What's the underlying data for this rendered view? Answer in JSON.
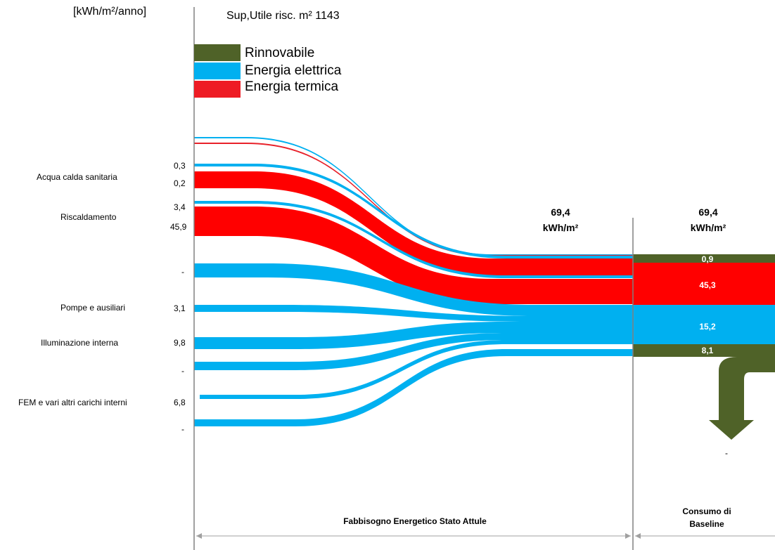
{
  "header": {
    "unit": "[kWh/m²/anno]",
    "surface": "Sup,Utile risc. m² 1143"
  },
  "legend": [
    {
      "label": "Rinnovabile",
      "color": "#4f6228"
    },
    {
      "label": "Energia elettrica",
      "color": "#00b0f0"
    },
    {
      "label": "Energia termica",
      "color": "#ff0000"
    }
  ],
  "categories": [
    "Acqua calda sanitaria",
    "Riscaldamento",
    "Pompe e ausiliari",
    "Illuminazione interna",
    "FEM e vari altri carichi interni"
  ],
  "left_values": [
    "0,3",
    "0,2",
    "3,4",
    "45,9",
    "-",
    "3,1",
    "9,8",
    "-",
    "6,8",
    "-"
  ],
  "totals": {
    "fabbisogno": "69,4",
    "fabbisogno_unit": "kWh/m²",
    "consumo": "69,4",
    "consumo_unit": "kWh/m²"
  },
  "baseline_segments": [
    "0,9",
    "45,3",
    "15,2",
    "8,1"
  ],
  "export_value": "-",
  "footer": {
    "left": "Fabbisogno Energetico Stato Attule",
    "right_line1": "Consumo di",
    "right_line2": "Baseline"
  },
  "colors": {
    "rinnovabile": "#4f6228",
    "elettrica": "#00b0f0",
    "termica": "#ff0000",
    "axis": "#808080"
  },
  "chart_data": {
    "type": "sankey",
    "unit": "[kWh/m²/anno]",
    "flows": [
      {
        "category": "Acqua calda sanitaria",
        "carrier": "Energia elettrica",
        "value": 0.3
      },
      {
        "category": "Acqua calda sanitaria",
        "carrier": "Energia termica",
        "value": 0.2
      },
      {
        "category": "Riscaldamento",
        "carrier": "Energia elettrica",
        "value": 3.4
      },
      {
        "category": "Riscaldamento",
        "carrier": "Energia termica",
        "value": 45.9
      },
      {
        "category": "Pompe e ausiliari",
        "carrier": "Energia elettrica",
        "value": 3.1
      },
      {
        "category": "Illuminazione interna",
        "carrier": "Energia elettrica",
        "value": 9.8
      },
      {
        "category": "FEM e vari altri carichi interni",
        "carrier": "Energia elettrica",
        "value": 6.8
      }
    ],
    "total_fabbisogno": 69.4,
    "baseline": [
      {
        "carrier": "Rinnovabile",
        "value": 0.9
      },
      {
        "carrier": "Energia termica",
        "value": 45.3
      },
      {
        "carrier": "Energia elettrica",
        "value": 15.2
      },
      {
        "carrier": "Rinnovabile",
        "value": 8.1
      }
    ],
    "total_consumo": 69.4
  }
}
